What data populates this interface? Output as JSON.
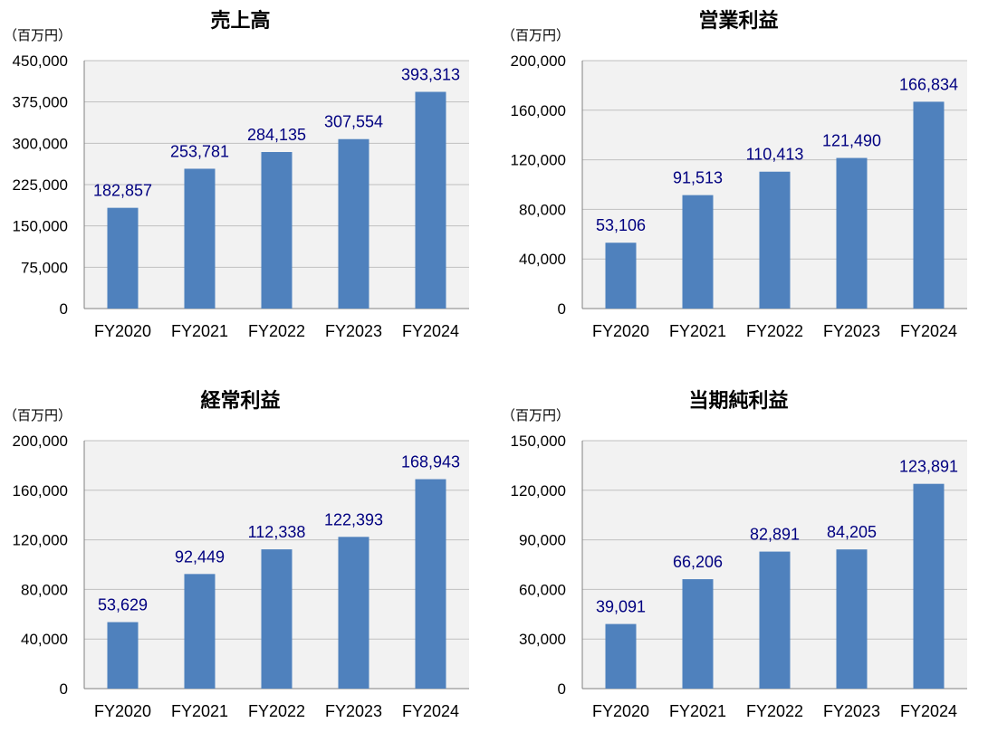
{
  "colors": {
    "bar": "#4F81BD",
    "plot_bg": "#F2F2F2",
    "grid": "#BFBFBF",
    "axis": "#808080",
    "data_label": "#000080"
  },
  "chart_data": [
    {
      "type": "bar",
      "title": "売上高",
      "unit_label": "（百万円）",
      "categories": [
        "FY2020",
        "FY2021",
        "FY2022",
        "FY2023",
        "FY2024"
      ],
      "values": [
        182857,
        253781,
        284135,
        307554,
        393313
      ],
      "data_labels": [
        "182,857",
        "253,781",
        "284,135",
        "307,554",
        "393,313"
      ],
      "ylim": [
        0,
        450000
      ],
      "yticks": [
        "0",
        "75,000",
        "150,000",
        "225,000",
        "300,000",
        "375,000",
        "450,000"
      ],
      "grid": true
    },
    {
      "type": "bar",
      "title": "営業利益",
      "unit_label": "（百万円）",
      "categories": [
        "FY2020",
        "FY2021",
        "FY2022",
        "FY2023",
        "FY2024"
      ],
      "values": [
        53106,
        91513,
        110413,
        121490,
        166834
      ],
      "data_labels": [
        "53,106",
        "91,513",
        "110,413",
        "121,490",
        "166,834"
      ],
      "ylim": [
        0,
        200000
      ],
      "yticks": [
        "0",
        "40,000",
        "80,000",
        "120,000",
        "160,000",
        "200,000"
      ],
      "grid": true
    },
    {
      "type": "bar",
      "title": "経常利益",
      "unit_label": "（百万円）",
      "categories": [
        "FY2020",
        "FY2021",
        "FY2022",
        "FY2023",
        "FY2024"
      ],
      "values": [
        53629,
        92449,
        112338,
        122393,
        168943
      ],
      "data_labels": [
        "53,629",
        "92,449",
        "112,338",
        "122,393",
        "168,943"
      ],
      "ylim": [
        0,
        200000
      ],
      "yticks": [
        "0",
        "40,000",
        "80,000",
        "120,000",
        "160,000",
        "200,000"
      ],
      "grid": true
    },
    {
      "type": "bar",
      "title": "当期純利益",
      "unit_label": "（百万円）",
      "categories": [
        "FY2020",
        "FY2021",
        "FY2022",
        "FY2023",
        "FY2024"
      ],
      "values": [
        39091,
        66206,
        82891,
        84205,
        123891
      ],
      "data_labels": [
        "39,091",
        "66,206",
        "82,891",
        "84,205",
        "123,891"
      ],
      "ylim": [
        0,
        150000
      ],
      "yticks": [
        "0",
        "30,000",
        "60,000",
        "90,000",
        "120,000",
        "150,000"
      ],
      "grid": true
    }
  ]
}
